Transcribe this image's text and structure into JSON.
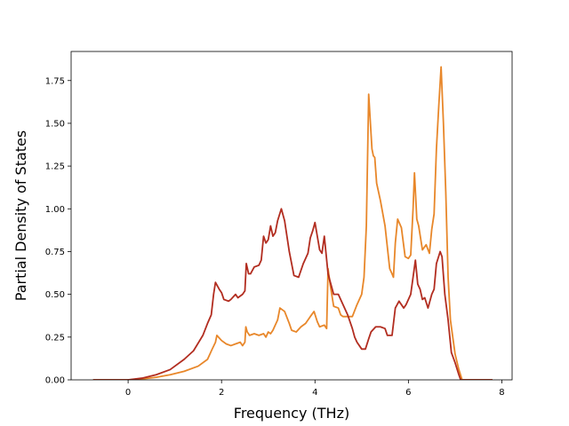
{
  "chart_data": {
    "type": "line",
    "title": "",
    "xlabel": "Frequency (THz)",
    "ylabel": "Partial Density of States",
    "xlim": [
      -1.22,
      8.22
    ],
    "ylim": [
      0.0,
      1.92
    ],
    "xticks": [
      0,
      2,
      4,
      6,
      8
    ],
    "xtick_labels": [
      "0",
      "2",
      "4",
      "6",
      "8"
    ],
    "yticks": [
      0.0,
      0.25,
      0.5,
      0.75,
      1.0,
      1.25,
      1.5,
      1.75
    ],
    "ytick_labels": [
      "0.00",
      "0.25",
      "0.50",
      "0.75",
      "1.00",
      "1.25",
      "1.50",
      "1.75"
    ],
    "grid": false,
    "legend": "none",
    "series": [
      {
        "color": "#e8872a",
        "points": [
          [
            -0.75,
            0
          ],
          [
            0,
            0
          ],
          [
            0.3,
            0.005
          ],
          [
            0.6,
            0.015
          ],
          [
            0.9,
            0.03
          ],
          [
            1.2,
            0.05
          ],
          [
            1.5,
            0.08
          ],
          [
            1.7,
            0.12
          ],
          [
            1.8,
            0.18
          ],
          [
            1.87,
            0.22
          ],
          [
            1.9,
            0.26
          ],
          [
            2.0,
            0.23
          ],
          [
            2.1,
            0.21
          ],
          [
            2.2,
            0.2
          ],
          [
            2.3,
            0.21
          ],
          [
            2.4,
            0.22
          ],
          [
            2.45,
            0.2
          ],
          [
            2.5,
            0.22
          ],
          [
            2.52,
            0.31
          ],
          [
            2.55,
            0.28
          ],
          [
            2.6,
            0.26
          ],
          [
            2.7,
            0.27
          ],
          [
            2.8,
            0.26
          ],
          [
            2.9,
            0.27
          ],
          [
            2.95,
            0.25
          ],
          [
            3.0,
            0.28
          ],
          [
            3.05,
            0.27
          ],
          [
            3.1,
            0.29
          ],
          [
            3.2,
            0.35
          ],
          [
            3.25,
            0.42
          ],
          [
            3.35,
            0.4
          ],
          [
            3.45,
            0.33
          ],
          [
            3.5,
            0.29
          ],
          [
            3.6,
            0.28
          ],
          [
            3.7,
            0.31
          ],
          [
            3.8,
            0.33
          ],
          [
            3.9,
            0.37
          ],
          [
            3.98,
            0.4
          ],
          [
            4.05,
            0.34
          ],
          [
            4.1,
            0.31
          ],
          [
            4.2,
            0.32
          ],
          [
            4.25,
            0.3
          ],
          [
            4.28,
            0.65
          ],
          [
            4.33,
            0.55
          ],
          [
            4.4,
            0.43
          ],
          [
            4.5,
            0.42
          ],
          [
            4.55,
            0.38
          ],
          [
            4.6,
            0.37
          ],
          [
            4.8,
            0.37
          ],
          [
            4.9,
            0.44
          ],
          [
            5.0,
            0.5
          ],
          [
            5.05,
            0.6
          ],
          [
            5.1,
            0.9
          ],
          [
            5.15,
            1.67
          ],
          [
            5.22,
            1.35
          ],
          [
            5.25,
            1.31
          ],
          [
            5.28,
            1.3
          ],
          [
            5.32,
            1.15
          ],
          [
            5.4,
            1.05
          ],
          [
            5.5,
            0.9
          ],
          [
            5.6,
            0.65
          ],
          [
            5.65,
            0.62
          ],
          [
            5.68,
            0.6
          ],
          [
            5.72,
            0.8
          ],
          [
            5.77,
            0.94
          ],
          [
            5.85,
            0.89
          ],
          [
            5.93,
            0.72
          ],
          [
            6.0,
            0.71
          ],
          [
            6.05,
            0.73
          ],
          [
            6.1,
            1.0
          ],
          [
            6.13,
            1.21
          ],
          [
            6.18,
            0.94
          ],
          [
            6.22,
            0.9
          ],
          [
            6.3,
            0.76
          ],
          [
            6.38,
            0.79
          ],
          [
            6.45,
            0.74
          ],
          [
            6.5,
            0.88
          ],
          [
            6.55,
            0.97
          ],
          [
            6.6,
            1.35
          ],
          [
            6.65,
            1.6
          ],
          [
            6.7,
            1.83
          ],
          [
            6.75,
            1.5
          ],
          [
            6.8,
            1.1
          ],
          [
            6.85,
            0.6
          ],
          [
            6.9,
            0.35
          ],
          [
            7.0,
            0.15
          ],
          [
            7.08,
            0.06
          ],
          [
            7.15,
            0
          ],
          [
            7.8,
            0
          ]
        ]
      },
      {
        "color": "#b22d20",
        "points": [
          [
            -0.75,
            0
          ],
          [
            0,
            0
          ],
          [
            0.3,
            0.01
          ],
          [
            0.6,
            0.03
          ],
          [
            0.9,
            0.06
          ],
          [
            1.2,
            0.12
          ],
          [
            1.4,
            0.17
          ],
          [
            1.6,
            0.26
          ],
          [
            1.7,
            0.33
          ],
          [
            1.78,
            0.38
          ],
          [
            1.83,
            0.5
          ],
          [
            1.87,
            0.57
          ],
          [
            1.95,
            0.53
          ],
          [
            2.0,
            0.51
          ],
          [
            2.05,
            0.47
          ],
          [
            2.15,
            0.46
          ],
          [
            2.2,
            0.47
          ],
          [
            2.3,
            0.5
          ],
          [
            2.35,
            0.48
          ],
          [
            2.45,
            0.5
          ],
          [
            2.5,
            0.52
          ],
          [
            2.53,
            0.68
          ],
          [
            2.58,
            0.62
          ],
          [
            2.62,
            0.62
          ],
          [
            2.7,
            0.66
          ],
          [
            2.8,
            0.67
          ],
          [
            2.85,
            0.7
          ],
          [
            2.9,
            0.84
          ],
          [
            2.95,
            0.8
          ],
          [
            3.0,
            0.82
          ],
          [
            3.05,
            0.9
          ],
          [
            3.1,
            0.84
          ],
          [
            3.15,
            0.86
          ],
          [
            3.2,
            0.93
          ],
          [
            3.28,
            1.0
          ],
          [
            3.35,
            0.93
          ],
          [
            3.45,
            0.75
          ],
          [
            3.55,
            0.61
          ],
          [
            3.65,
            0.6
          ],
          [
            3.75,
            0.68
          ],
          [
            3.85,
            0.74
          ],
          [
            3.9,
            0.83
          ],
          [
            3.95,
            0.87
          ],
          [
            4.0,
            0.92
          ],
          [
            4.05,
            0.84
          ],
          [
            4.1,
            0.76
          ],
          [
            4.15,
            0.74
          ],
          [
            4.2,
            0.84
          ],
          [
            4.28,
            0.62
          ],
          [
            4.35,
            0.55
          ],
          [
            4.4,
            0.5
          ],
          [
            4.5,
            0.5
          ],
          [
            4.6,
            0.44
          ],
          [
            4.7,
            0.38
          ],
          [
            4.8,
            0.3
          ],
          [
            4.85,
            0.25
          ],
          [
            4.9,
            0.22
          ],
          [
            5.0,
            0.18
          ],
          [
            5.08,
            0.18
          ],
          [
            5.15,
            0.24
          ],
          [
            5.2,
            0.28
          ],
          [
            5.3,
            0.31
          ],
          [
            5.4,
            0.31
          ],
          [
            5.5,
            0.3
          ],
          [
            5.55,
            0.26
          ],
          [
            5.65,
            0.26
          ],
          [
            5.72,
            0.42
          ],
          [
            5.8,
            0.46
          ],
          [
            5.9,
            0.42
          ],
          [
            5.95,
            0.44
          ],
          [
            6.05,
            0.5
          ],
          [
            6.1,
            0.6
          ],
          [
            6.15,
            0.7
          ],
          [
            6.2,
            0.56
          ],
          [
            6.25,
            0.53
          ],
          [
            6.3,
            0.47
          ],
          [
            6.35,
            0.48
          ],
          [
            6.42,
            0.42
          ],
          [
            6.5,
            0.5
          ],
          [
            6.55,
            0.53
          ],
          [
            6.6,
            0.68
          ],
          [
            6.68,
            0.75
          ],
          [
            6.72,
            0.72
          ],
          [
            6.78,
            0.5
          ],
          [
            6.85,
            0.35
          ],
          [
            6.92,
            0.16
          ],
          [
            7.0,
            0.1
          ],
          [
            7.08,
            0.03
          ],
          [
            7.12,
            0
          ],
          [
            7.8,
            0
          ]
        ]
      }
    ]
  }
}
